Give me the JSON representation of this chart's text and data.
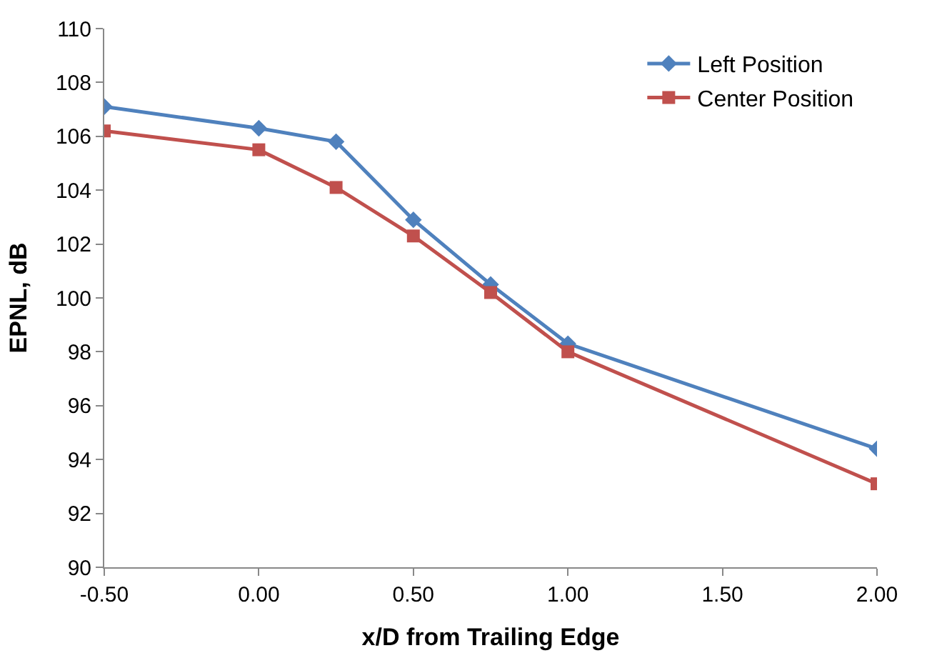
{
  "chart_data": {
    "type": "line",
    "xlabel": "x/D from Trailing Edge",
    "ylabel": "EPNL, dB",
    "x": [
      -0.5,
      0.0,
      0.25,
      0.5,
      0.75,
      1.0,
      2.0
    ],
    "series": [
      {
        "name": "Left Position",
        "color": "#4f81bd",
        "marker": "diamond",
        "values": [
          107.1,
          106.3,
          105.8,
          102.9,
          100.5,
          98.3,
          94.4
        ]
      },
      {
        "name": "Center Position",
        "color": "#c0504d",
        "marker": "square",
        "values": [
          106.2,
          105.5,
          104.1,
          102.3,
          100.2,
          98.0,
          93.1
        ]
      }
    ],
    "xlim": [
      -0.5,
      2.0
    ],
    "xticks": [
      {
        "value": -0.5,
        "label": "-0.50"
      },
      {
        "value": 0.0,
        "label": "0.00"
      },
      {
        "value": 0.5,
        "label": "0.50"
      },
      {
        "value": 1.0,
        "label": "1.00"
      },
      {
        "value": 1.5,
        "label": "1.50"
      },
      {
        "value": 2.0,
        "label": "2.00"
      }
    ],
    "ylim": [
      90,
      110
    ],
    "yticks": [
      90,
      92,
      94,
      96,
      98,
      100,
      102,
      104,
      106,
      108,
      110
    ],
    "legend": "top right",
    "line_style": "solid"
  }
}
